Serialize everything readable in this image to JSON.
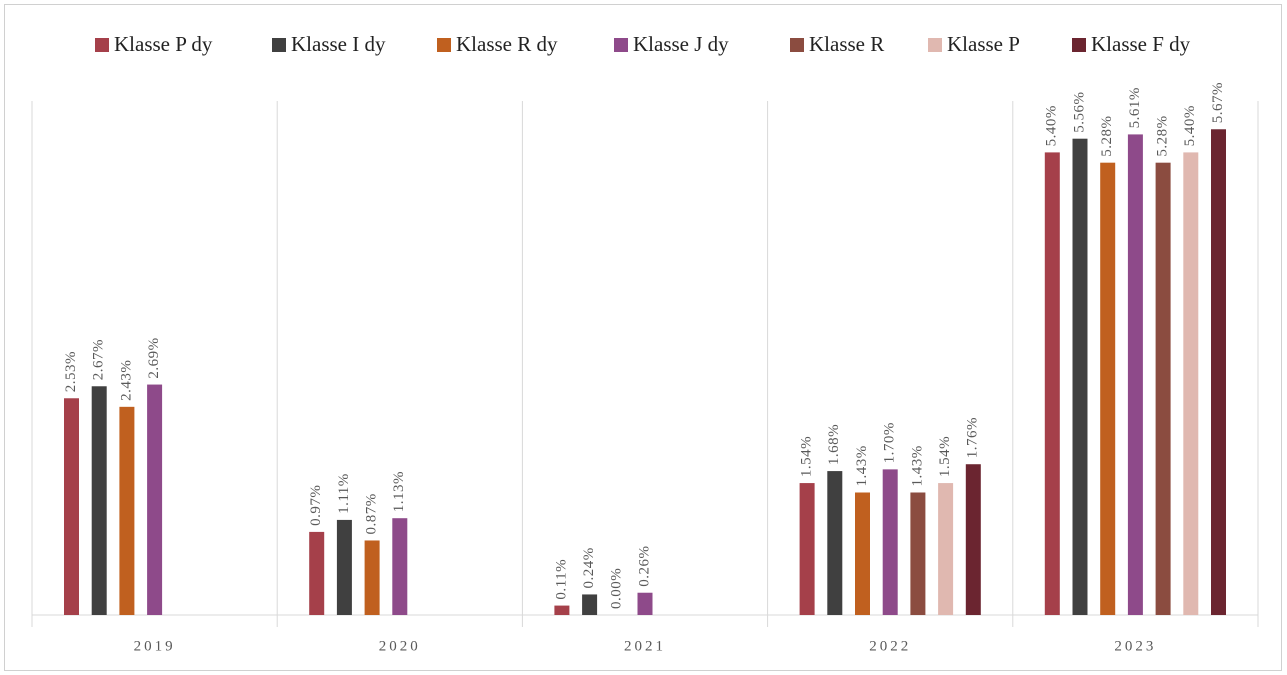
{
  "chart_data": {
    "type": "bar",
    "categories": [
      "2019",
      "2020",
      "2021",
      "2022",
      "2023"
    ],
    "ylim": [
      0,
      6
    ],
    "series": [
      {
        "name": "Klasse P dy",
        "color": "#a5404a",
        "values": [
          2.53,
          0.97,
          0.11,
          1.54,
          5.4
        ],
        "value_labels": [
          "2.53%",
          "0.97%",
          "0.11%",
          "1.54%",
          "5.40%"
        ]
      },
      {
        "name": "Klasse I dy",
        "color": "#404040",
        "values": [
          2.67,
          1.11,
          0.24,
          1.68,
          5.56
        ],
        "value_labels": [
          "2.67%",
          "1.11%",
          "0.24%",
          "1.68%",
          "5.56%"
        ]
      },
      {
        "name": "Klasse R dy",
        "color": "#c0601f",
        "values": [
          2.43,
          0.87,
          0.0,
          1.43,
          5.28
        ],
        "value_labels": [
          "2.43%",
          "0.87%",
          "0.00%",
          "1.43%",
          "5.28%"
        ]
      },
      {
        "name": "Klasse J dy",
        "color": "#8e4a8a",
        "values": [
          2.69,
          1.13,
          0.26,
          1.7,
          5.61
        ],
        "value_labels": [
          "2.69%",
          "1.13%",
          "0.26%",
          "1.70%",
          "5.61%"
        ]
      },
      {
        "name": "Klasse R",
        "color": "#8b4c40",
        "values": [
          null,
          null,
          null,
          1.43,
          5.28
        ],
        "value_labels": [
          null,
          null,
          null,
          "1.43%",
          "5.28%"
        ]
      },
      {
        "name": "Klasse P",
        "color": "#e0b8b0",
        "values": [
          null,
          null,
          null,
          1.54,
          5.4
        ],
        "value_labels": [
          null,
          null,
          null,
          "1.54%",
          "5.40%"
        ]
      },
      {
        "name": "Klasse F dy",
        "color": "#6b2530",
        "values": [
          null,
          null,
          null,
          1.76,
          5.67
        ],
        "value_labels": [
          null,
          null,
          null,
          "1.76%",
          "5.67%"
        ]
      }
    ]
  }
}
